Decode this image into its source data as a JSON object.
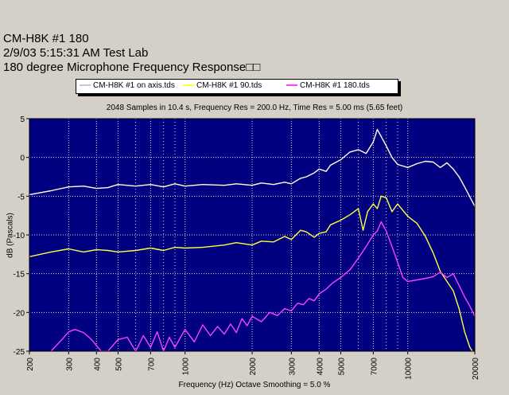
{
  "header": {
    "line1": "CM-H8K #1 180",
    "line2": "2/9/03 5:15:31 AM    Test Lab",
    "line3": "180 degree Microphone Frequency Response□□"
  },
  "chart_data": {
    "type": "line",
    "subtitle": "2048 Samples in 10.4 s, Frequency Res = 200.0 Hz, Time Res = 5.00 ms (5.65 feet)",
    "xlabel": "Frequency (Hz) Octave Smoothing = 5.0 %",
    "ylabel": "dB (Pascals)",
    "x_scale": "log",
    "xlim": [
      200,
      20000
    ],
    "ylim": [
      -25,
      5
    ],
    "x_ticks": [
      200,
      300,
      400,
      500,
      700,
      1000,
      2000,
      3000,
      4000,
      5000,
      7000,
      10000,
      20000
    ],
    "x_tick_labels": [
      "200",
      "300",
      "400",
      "500",
      "700",
      "1000",
      "2000",
      "3000",
      "4000",
      "5000",
      "7000",
      "10000",
      "20000"
    ],
    "y_ticks": [
      5,
      0,
      -5,
      -10,
      -15,
      -20,
      -25
    ],
    "y_tick_labels": [
      "5",
      "0",
      "-5",
      "-10",
      "-15",
      "-20",
      "-25"
    ],
    "grid": true,
    "legend_position": "top",
    "plot_background": "#000080",
    "series": [
      {
        "name": "CM-H8K #1 on axis.tds",
        "color": "#ffffe8",
        "x": [
          200,
          250,
          300,
          350,
          400,
          450,
          500,
          600,
          700,
          800,
          900,
          1000,
          1200,
          1500,
          1700,
          2000,
          2200,
          2500,
          2800,
          3000,
          3300,
          3500,
          3800,
          4000,
          4300,
          4500,
          5000,
          5500,
          6000,
          6500,
          7000,
          7300,
          7500,
          8000,
          8500,
          9000,
          10000,
          11000,
          12000,
          13000,
          14000,
          15000,
          16000,
          17000,
          18000,
          20000
        ],
        "y": [
          -4.8,
          -4.3,
          -3.8,
          -3.7,
          -4.0,
          -3.9,
          -3.5,
          -3.7,
          -3.5,
          -3.8,
          -3.4,
          -3.7,
          -3.5,
          -3.6,
          -3.4,
          -3.6,
          -3.3,
          -3.5,
          -3.2,
          -3.4,
          -2.7,
          -2.5,
          -2.0,
          -1.5,
          -1.8,
          -1.0,
          -0.3,
          0.7,
          1.0,
          0.5,
          2.0,
          3.6,
          3.0,
          1.5,
          0.0,
          -0.9,
          -1.3,
          -0.8,
          -0.5,
          -0.6,
          -1.3,
          -0.7,
          -1.5,
          -2.5,
          -3.8,
          -6.3
        ]
      },
      {
        "name": "CM-H8K #1 90.tds",
        "color": "#ffff40",
        "x": [
          200,
          250,
          300,
          350,
          400,
          450,
          500,
          600,
          700,
          800,
          900,
          1000,
          1200,
          1500,
          1700,
          2000,
          2200,
          2500,
          2800,
          3000,
          3300,
          3500,
          3800,
          4000,
          4300,
          4500,
          5000,
          5500,
          6000,
          6300,
          6600,
          7000,
          7300,
          7600,
          8000,
          8500,
          9000,
          10000,
          11000,
          12000,
          13000,
          14000,
          15000,
          16000,
          17000,
          18000,
          19000,
          20000
        ],
        "y": [
          -12.8,
          -12.2,
          -11.8,
          -12.2,
          -11.9,
          -12.0,
          -12.2,
          -12.0,
          -11.7,
          -12.0,
          -11.6,
          -11.7,
          -11.6,
          -11.3,
          -11.0,
          -11.3,
          -10.8,
          -10.9,
          -10.2,
          -10.6,
          -9.4,
          -9.6,
          -10.3,
          -9.8,
          -9.6,
          -8.7,
          -8.1,
          -7.4,
          -6.6,
          -9.4,
          -7.0,
          -6.0,
          -6.6,
          -5.0,
          -5.2,
          -7.0,
          -6.0,
          -7.6,
          -8.5,
          -10.2,
          -12.3,
          -14.7,
          -16.0,
          -17.2,
          -19.5,
          -22.5,
          -24.5,
          -25.5
        ]
      },
      {
        "name": "CM-H8K #1 180.tds",
        "color": "#ff40ff",
        "x": [
          250,
          280,
          300,
          320,
          350,
          380,
          420,
          450,
          500,
          550,
          600,
          650,
          700,
          750,
          800,
          850,
          900,
          1000,
          1100,
          1200,
          1300,
          1400,
          1500,
          1600,
          1700,
          1800,
          1900,
          2000,
          2200,
          2400,
          2600,
          2800,
          3000,
          3200,
          3400,
          3600,
          3800,
          4000,
          4300,
          4600,
          5000,
          5500,
          6000,
          6500,
          7000,
          7300,
          7600,
          8000,
          8500,
          9000,
          9500,
          10000,
          11000,
          12000,
          13000,
          14000,
          15000,
          16000,
          17000,
          18000,
          19000,
          20000
        ],
        "y": [
          -25.0,
          -23.5,
          -22.5,
          -22.2,
          -22.6,
          -23.5,
          -25.0,
          -25.0,
          -23.5,
          -23.2,
          -25.0,
          -23.0,
          -24.5,
          -22.5,
          -25.0,
          -23.2,
          -24.5,
          -22.2,
          -23.8,
          -21.6,
          -23.0,
          -21.8,
          -22.8,
          -21.5,
          -22.6,
          -20.8,
          -21.7,
          -20.5,
          -21.2,
          -20.0,
          -20.4,
          -19.5,
          -19.8,
          -18.8,
          -19.0,
          -18.2,
          -18.5,
          -17.6,
          -17.0,
          -16.2,
          -15.5,
          -14.5,
          -13.0,
          -11.5,
          -10.0,
          -9.5,
          -8.3,
          -9.5,
          -11.5,
          -13.5,
          -15.5,
          -16.0,
          -15.8,
          -15.6,
          -15.4,
          -14.8,
          -15.5,
          -15.0,
          -16.5,
          -18.0,
          -19.2,
          -20.5
        ]
      }
    ]
  }
}
